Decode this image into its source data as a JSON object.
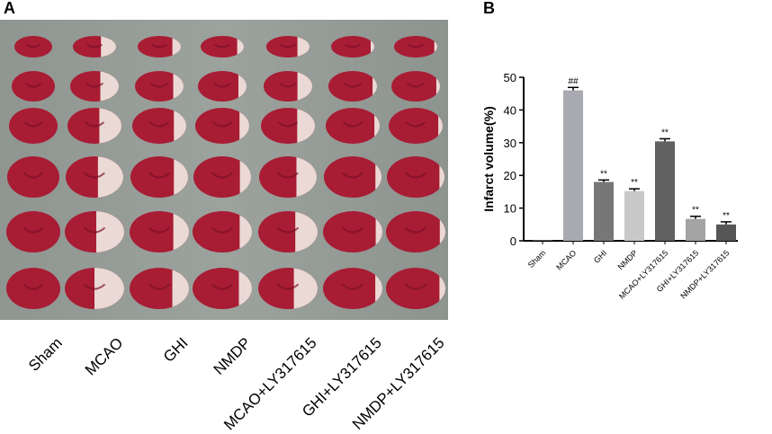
{
  "panel_a": {
    "letter": "A",
    "groups": [
      "Sham",
      "MCAO",
      "GHI",
      "NMDP",
      "MCAO+LY317615",
      "GHI+LY317615",
      "NMDP+LY317615"
    ],
    "infarct_colors": {
      "tissue": "#a81c34",
      "infarct": "#ead9d4",
      "background": "#969c97"
    }
  },
  "chart_data": {
    "letter": "B",
    "type": "bar",
    "ylabel": "Infarct volume(%)",
    "ylim": [
      0,
      50
    ],
    "yticks": [
      "0",
      "10",
      "20",
      "30",
      "40",
      "50"
    ],
    "categories": [
      "Sham",
      "MCAO",
      "GHI",
      "NMDP",
      "MCAO+LY317615",
      "GHI+LY317615",
      "NMDP+LY317615"
    ],
    "values": [
      0,
      46,
      18,
      15.2,
      30.4,
      6.7,
      5
    ],
    "errors": [
      0,
      0.9,
      0.6,
      0.7,
      0.8,
      0.8,
      0.8
    ],
    "significance": [
      "",
      "##",
      "**",
      "**",
      "**",
      "**",
      "**"
    ],
    "bar_colors": [
      "#a9a9b1",
      "#a9a9b1",
      "#777777",
      "#c8c8c8",
      "#616161",
      "#a4a4a4",
      "#565656"
    ]
  }
}
